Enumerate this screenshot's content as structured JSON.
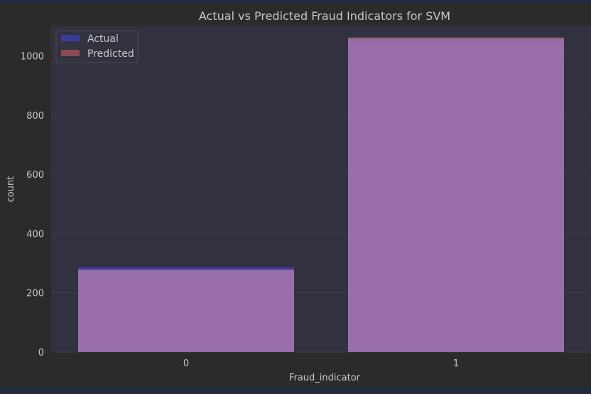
{
  "chart_data": {
    "type": "bar",
    "title": "Actual vs Predicted Fraud Indicators for SVM",
    "xlabel": "Fraud_indicator",
    "ylabel": "count",
    "categories": [
      "0",
      "1"
    ],
    "ylim": [
      0,
      1100
    ],
    "yticks": [
      "0",
      "200",
      "400",
      "600",
      "800",
      "1000"
    ],
    "grid": true,
    "legend_position": "top-left",
    "series": [
      {
        "name": "Actual",
        "values": [
          287,
          1053
        ],
        "color": "#3b3c9a"
      },
      {
        "name": "Predicted",
        "values": [
          278,
          1062
        ],
        "color": "#d98fb8"
      }
    ],
    "colors": {
      "background": "#2b2b2b",
      "plot_background": "#32313f",
      "grid": "#3d3c4c",
      "text": "#c8c8c8",
      "legend_predicted_swatch": "#8a4a52"
    }
  }
}
